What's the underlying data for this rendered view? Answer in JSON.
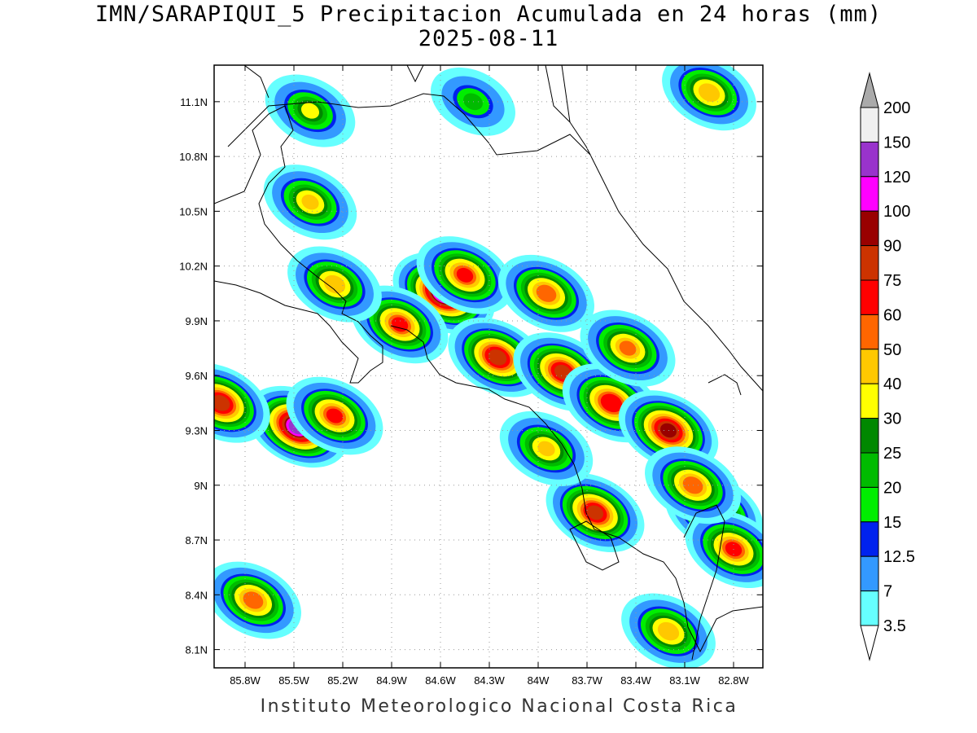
{
  "title_line1": "IMN/SARAPIQUI_5 Precipitacion Acumulada en 24 horas (mm)",
  "title_line2": "2025-08-11",
  "credit": "Instituto Meteorologico Nacional Costa Rica",
  "map": {
    "lat_ticks": [
      "11.1N",
      "10.8N",
      "10.5N",
      "10.2N",
      "9.9N",
      "9.6N",
      "9.3N",
      "9N",
      "8.7N",
      "8.4N",
      "8.1N"
    ],
    "lon_ticks": [
      "85.8W",
      "85.5W",
      "85.2W",
      "84.9W",
      "84.6W",
      "84.3W",
      "84W",
      "83.7W",
      "83.4W",
      "83.1W",
      "82.8W"
    ],
    "grid": "dotted",
    "blobs": [
      {
        "lon": -84.58,
        "lat": 10.05,
        "max": 130
      },
      {
        "lon": -84.45,
        "lat": 10.15,
        "max": 60
      },
      {
        "lon": -84.85,
        "lat": 9.88,
        "max": 60
      },
      {
        "lon": -83.95,
        "lat": 10.05,
        "max": 55
      },
      {
        "lon": -84.25,
        "lat": 9.7,
        "max": 80
      },
      {
        "lon": -83.85,
        "lat": 9.62,
        "max": 75
      },
      {
        "lon": -83.55,
        "lat": 9.45,
        "max": 70
      },
      {
        "lon": -83.2,
        "lat": 9.3,
        "max": 90
      },
      {
        "lon": -85.48,
        "lat": 9.32,
        "max": 125
      },
      {
        "lon": -85.25,
        "lat": 9.38,
        "max": 60
      },
      {
        "lon": -85.95,
        "lat": 9.45,
        "max": 80
      },
      {
        "lon": -83.65,
        "lat": 8.85,
        "max": 75
      },
      {
        "lon": -82.92,
        "lat": 8.85,
        "max": 70
      },
      {
        "lon": -82.8,
        "lat": 8.65,
        "max": 60
      },
      {
        "lon": -83.2,
        "lat": 8.2,
        "max": 45
      },
      {
        "lon": -85.75,
        "lat": 8.37,
        "max": 55
      },
      {
        "lon": -85.25,
        "lat": 10.1,
        "max": 45
      },
      {
        "lon": -85.4,
        "lat": 10.55,
        "max": 40
      },
      {
        "lon": -85.4,
        "lat": 11.05,
        "max": 30
      },
      {
        "lon": -82.95,
        "lat": 11.15,
        "max": 45
      },
      {
        "lon": -84.4,
        "lat": 11.1,
        "max": 20
      },
      {
        "lon": -83.45,
        "lat": 9.75,
        "max": 50
      },
      {
        "lon": -83.95,
        "lat": 9.2,
        "max": 40
      },
      {
        "lon": -83.05,
        "lat": 9.0,
        "max": 55
      }
    ]
  },
  "colorbar": {
    "labels": [
      "3.5",
      "7",
      "12.5",
      "15",
      "20",
      "25",
      "30",
      "40",
      "50",
      "60",
      "75",
      "90",
      "100",
      "120",
      "150",
      "200"
    ],
    "colors": [
      "#66ffff",
      "#3399ff",
      "#0022ee",
      "#00ee00",
      "#00bb00",
      "#008800",
      "#ffff00",
      "#ffc800",
      "#ff6600",
      "#ff0000",
      "#cc3300",
      "#990000",
      "#ff00ff",
      "#9933cc",
      "#f0f0f0"
    ],
    "top_arrow_color": "#aaaaaa",
    "bottom_arrow_color": "#ffffff"
  }
}
